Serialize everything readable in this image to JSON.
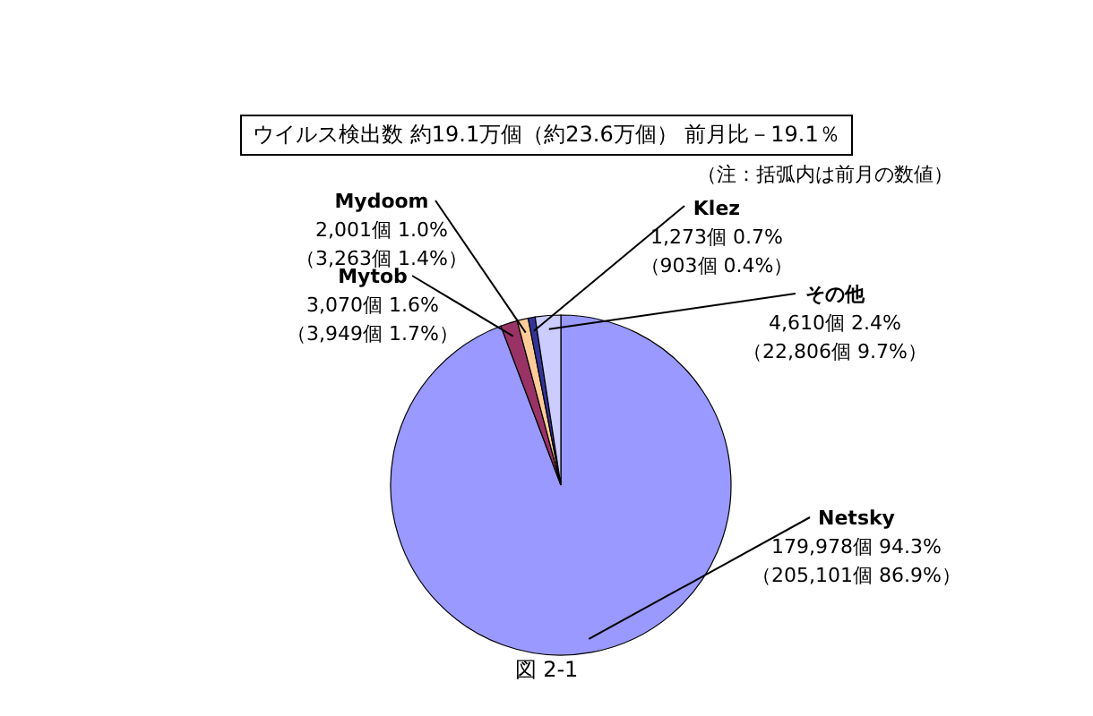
{
  "chart_data": {
    "type": "pie",
    "title": "ウイルス検出数 約19.1万個（約23.6万個） 前月比－19.1％",
    "subtitle": "（注：括弧内は前月の数値）",
    "categories": [
      "Netsky",
      "Mytob",
      "Mydoom",
      "Klez",
      "その他"
    ],
    "values": [
      179978,
      3070,
      2001,
      1273,
      4610
    ],
    "colors": [
      "#9999ff",
      "#993366",
      "#ffcc99",
      "#333399",
      "#ccccff"
    ],
    "value_labels": [
      "179,978個 94.3%",
      "3,070個 1.6%",
      "2,001個 1.0%",
      "1,273個 0.7%",
      "4,610個 2.4%"
    ],
    "annotations": [
      {
        "text": "（205,101個 86.9%）",
        "x": "Netsky"
      },
      {
        "text": "（3,949個 1.7%）",
        "x": "Mytob"
      },
      {
        "text": "（3,263個 1.4%）",
        "x": "Mydoom"
      },
      {
        "text": "（903個 0.4%）",
        "x": "Klez"
      },
      {
        "text": "（22,806個 9.7%）",
        "x": "その他"
      },
      "図 2-1"
    ],
    "legend": false
  }
}
